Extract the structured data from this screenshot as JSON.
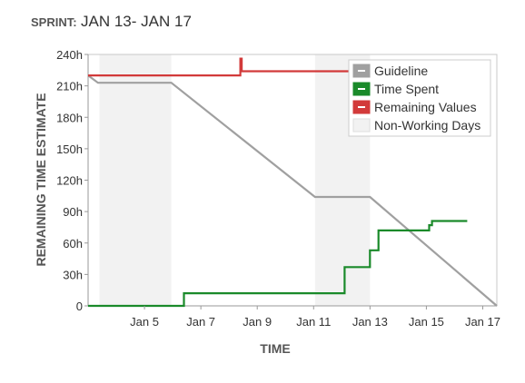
{
  "header": {
    "label": "SPRINT:",
    "value": "JAN 13- JAN 17"
  },
  "chart_data": {
    "type": "line",
    "xlabel": "TIME",
    "ylabel": "REMAINING TIME ESTIMATE",
    "x_unit": "day of January",
    "xlim": [
      3.0,
      17.5
    ],
    "ylim": [
      0,
      240
    ],
    "y_unit": "h",
    "y_ticks": [
      0,
      30,
      60,
      90,
      120,
      150,
      180,
      210,
      240
    ],
    "x_ticks": [
      5,
      7,
      9,
      11,
      13,
      15,
      17
    ],
    "x_tick_labels": [
      "Jan 5",
      "Jan 7",
      "Jan 9",
      "Jan 11",
      "Jan 13",
      "Jan 15",
      "Jan 17"
    ],
    "grid": false,
    "legend_position": "top-right",
    "non_working_days": [
      [
        3.4,
        5.95
      ],
      [
        11.05,
        13.0
      ]
    ],
    "series": [
      {
        "name": "Guideline",
        "color": "#a0a0a0",
        "points": [
          [
            3.0,
            220
          ],
          [
            3.35,
            213
          ],
          [
            5.95,
            213
          ],
          [
            11.05,
            104
          ],
          [
            13.0,
            104
          ],
          [
            17.5,
            0
          ]
        ]
      },
      {
        "name": "Time Spent",
        "color": "#1a8a2a",
        "points": [
          [
            3.0,
            0
          ],
          [
            6.4,
            0
          ],
          [
            6.4,
            12
          ],
          [
            12.1,
            12
          ],
          [
            12.1,
            37
          ],
          [
            13.0,
            37
          ],
          [
            13.0,
            53
          ],
          [
            13.3,
            53
          ],
          [
            13.3,
            72
          ],
          [
            15.1,
            72
          ],
          [
            15.1,
            77
          ],
          [
            15.2,
            77
          ],
          [
            15.2,
            81
          ],
          [
            16.45,
            81
          ]
        ]
      },
      {
        "name": "Remaining Values",
        "color": "#d23a3a",
        "points": [
          [
            3.0,
            220
          ],
          [
            8.4,
            220
          ],
          [
            8.4,
            236
          ],
          [
            8.45,
            236
          ],
          [
            8.45,
            224
          ],
          [
            12.9,
            224
          ]
        ]
      }
    ],
    "legend": [
      {
        "name": "Guideline",
        "color": "#a0a0a0"
      },
      {
        "name": "Time Spent",
        "color": "#1a8a2a"
      },
      {
        "name": "Remaining Values",
        "color": "#d23a3a"
      },
      {
        "name": "Non-Working Days",
        "color": "#f2f2f2"
      }
    ]
  }
}
